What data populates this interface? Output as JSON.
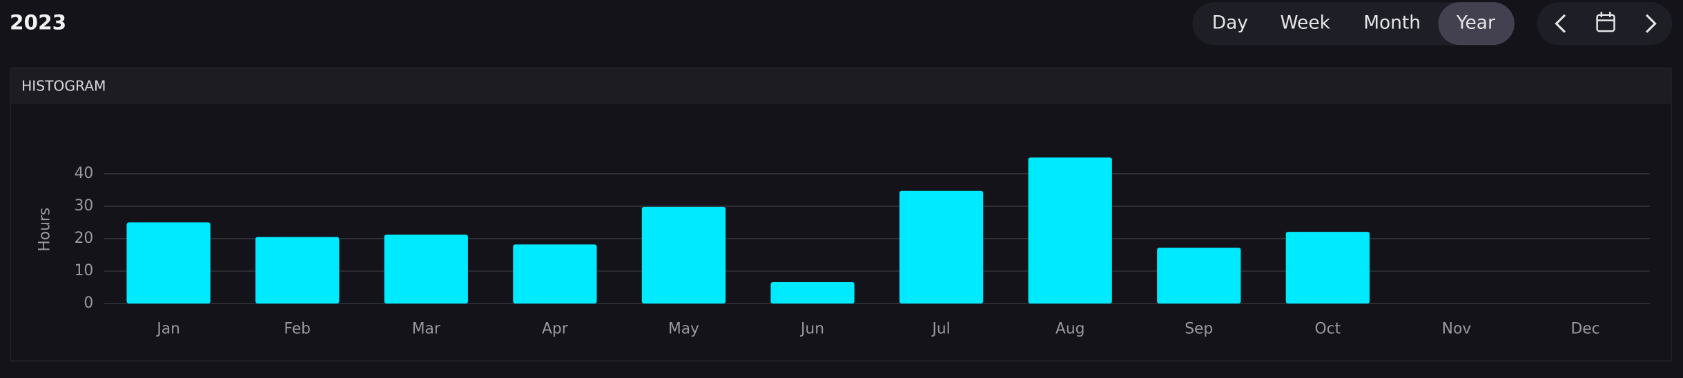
{
  "header": {
    "title": "2023",
    "range_buttons": [
      "Day",
      "Week",
      "Month",
      "Year"
    ],
    "selected": "Year"
  },
  "panel_title": "HISTOGRAM",
  "chart_data": {
    "type": "bar",
    "y_label": "Hours",
    "categories": [
      "Jan",
      "Feb",
      "Mar",
      "Apr",
      "May",
      "Jun",
      "Jul",
      "Aug",
      "Sep",
      "Oct",
      "Nov",
      "Dec"
    ],
    "values": [
      25,
      20.5,
      21.2,
      18.2,
      29.8,
      6.6,
      34.7,
      45,
      17.2,
      22.1,
      null,
      null
    ],
    "color": "#00eaff",
    "ylim": [
      0,
      46
    ],
    "yticks": [
      0,
      10,
      20,
      30,
      40
    ],
    "grid": true
  }
}
